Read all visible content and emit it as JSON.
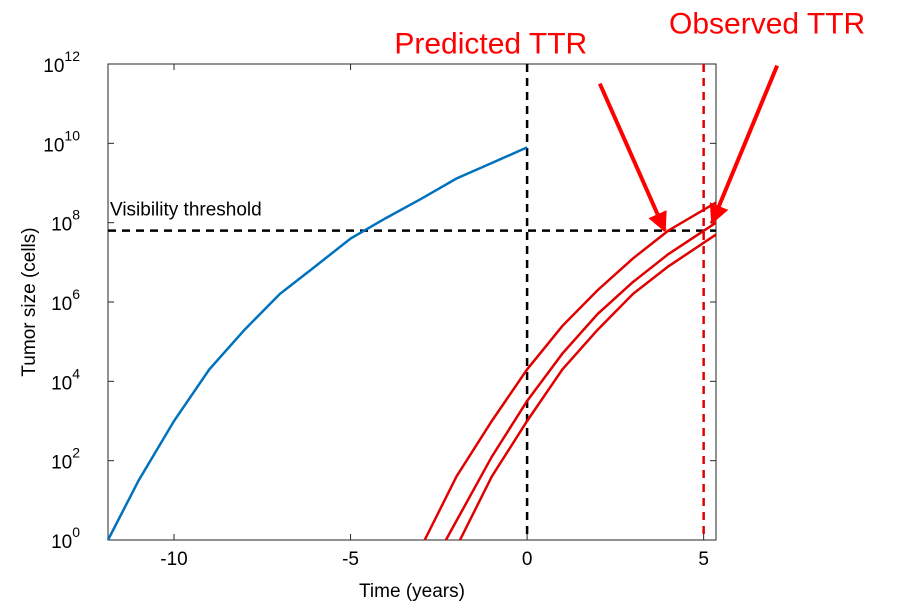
{
  "chart_data": {
    "type": "line",
    "x_label": "Time (years)",
    "y_label": "Tumor size (cells)",
    "log_y": true,
    "xlim": [
      -11.87,
      5.35
    ],
    "ylim": [
      1,
      1000000000000
    ],
    "xticks": [
      -10,
      -5,
      0,
      5
    ],
    "yticks": [
      {
        "value": 1,
        "label": "10",
        "exponent": "0"
      },
      {
        "value": 100,
        "label": "10",
        "exponent": "2"
      },
      {
        "value": 10000,
        "label": "10",
        "exponent": "4"
      },
      {
        "value": 1000000,
        "label": "10",
        "exponent": "6"
      },
      {
        "value": 100000000,
        "label": "10",
        "exponent": "8"
      },
      {
        "value": 10000000000,
        "label": "10",
        "exponent": "10"
      },
      {
        "value": 1000000000000,
        "label": "10",
        "exponent": "12"
      }
    ],
    "series": [
      {
        "color": "#0072bd",
        "x": [
          -11.87,
          -11,
          -10,
          -9,
          -8,
          -7,
          -6,
          -5,
          -4,
          -3,
          -2,
          -1,
          0
        ],
        "values": [
          1,
          32,
          1000,
          20000,
          200000,
          1600000,
          7900000,
          40000000,
          130000000,
          400000000,
          1300000000,
          3200000000,
          7900000000
        ]
      },
      {
        "color": "#e00000",
        "x": [
          -2.9,
          -2,
          -1,
          0,
          1,
          2,
          3,
          4,
          5.35
        ],
        "values": [
          1,
          40,
          1000,
          20000,
          250000,
          2000000,
          12600000,
          63000000,
          320000000
        ]
      },
      {
        "color": "#e00000",
        "x": [
          -2.3,
          -1,
          0,
          1,
          2,
          3,
          4,
          5.35
        ],
        "values": [
          1,
          126,
          3200,
          50000,
          500000,
          3200000,
          16000000,
          100000000
        ]
      },
      {
        "color": "#e00000",
        "x": [
          -1.9,
          -1,
          0,
          1,
          2,
          3,
          4,
          5.35
        ],
        "values": [
          1,
          40,
          1000,
          20000,
          200000,
          1600000,
          7900000,
          50000000
        ]
      }
    ],
    "vlines": [
      {
        "x": 0,
        "color": "#000000"
      },
      {
        "x": 5,
        "color": "#e00000"
      }
    ],
    "hline": {
      "y": 63000000,
      "color": "#000000",
      "label": "Visibility threshold"
    },
    "annotations": [
      {
        "text": "Predicted TTR",
        "x": 3.9,
        "y": 63000000,
        "color": "#ff0000"
      },
      {
        "text": "Observed TTR",
        "x": 5.24,
        "y": 100000000,
        "color": "#ff0000"
      }
    ]
  }
}
